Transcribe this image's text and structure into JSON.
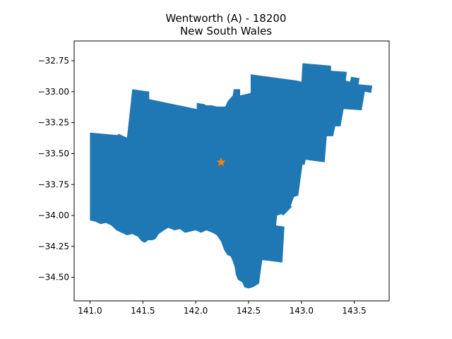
{
  "title_line1": "Wentworth (A) - 18200",
  "title_line2": "New South Wales",
  "colors": {
    "region": "#1f77b4",
    "marker": "#ff7f0e",
    "axes": "#000000"
  },
  "chart_data": {
    "type": "map",
    "xlim": [
      140.85,
      143.83
    ],
    "ylim": [
      -34.69,
      -32.59
    ],
    "x_ticks": [
      141.0,
      141.5,
      142.0,
      142.5,
      143.0,
      143.5
    ],
    "x_tick_labels": [
      "141.0",
      "141.5",
      "142.0",
      "142.5",
      "143.0",
      "143.5"
    ],
    "y_ticks": [
      -32.75,
      -33.0,
      -33.25,
      -33.5,
      -33.75,
      -34.0,
      -34.25,
      -34.5
    ],
    "y_tick_labels": [
      "−32.75",
      "−33.00",
      "−33.25",
      "−33.50",
      "−33.75",
      "−34.00",
      "−34.25",
      "−34.50"
    ],
    "region": {
      "name": "Wentworth (A) - 18200",
      "outline_lonlat": [
        [
          141.0,
          -33.33
        ],
        [
          141.26,
          -33.35
        ],
        [
          141.27,
          -33.34
        ],
        [
          141.32,
          -33.36
        ],
        [
          141.35,
          -33.37
        ],
        [
          141.4,
          -32.98
        ],
        [
          141.56,
          -33.0
        ],
        [
          141.56,
          -33.06
        ],
        [
          142.01,
          -33.14
        ],
        [
          142.01,
          -33.09
        ],
        [
          142.08,
          -33.1
        ],
        [
          142.1,
          -33.11
        ],
        [
          142.15,
          -33.11
        ],
        [
          142.2,
          -33.12
        ],
        [
          142.28,
          -33.12
        ],
        [
          142.3,
          -33.08
        ],
        [
          142.35,
          -33.03
        ],
        [
          142.36,
          -32.98
        ],
        [
          142.42,
          -32.98
        ],
        [
          142.42,
          -33.03
        ],
        [
          142.52,
          -33.01
        ],
        [
          142.52,
          -32.86
        ],
        [
          142.96,
          -32.91
        ],
        [
          143.0,
          -32.92
        ],
        [
          143.01,
          -32.77
        ],
        [
          143.28,
          -32.79
        ],
        [
          143.28,
          -32.83
        ],
        [
          143.43,
          -32.84
        ],
        [
          143.42,
          -32.91
        ],
        [
          143.46,
          -32.92
        ],
        [
          143.47,
          -32.88
        ],
        [
          143.55,
          -32.89
        ],
        [
          143.54,
          -32.94
        ],
        [
          143.67,
          -32.95
        ],
        [
          143.66,
          -33.01
        ],
        [
          143.6,
          -33.0
        ],
        [
          143.57,
          -33.15
        ],
        [
          143.4,
          -33.14
        ],
        [
          143.37,
          -33.28
        ],
        [
          143.32,
          -33.28
        ],
        [
          143.3,
          -33.36
        ],
        [
          143.24,
          -33.36
        ],
        [
          143.22,
          -33.57
        ],
        [
          143.04,
          -33.55
        ],
        [
          143.03,
          -33.59
        ],
        [
          143.01,
          -33.59
        ],
        [
          142.97,
          -33.84
        ],
        [
          142.93,
          -33.85
        ],
        [
          142.9,
          -33.92
        ],
        [
          142.91,
          -33.93
        ],
        [
          142.83,
          -34.0
        ],
        [
          142.81,
          -33.99
        ],
        [
          142.77,
          -34.0
        ],
        [
          142.76,
          -34.08
        ],
        [
          142.84,
          -34.09
        ],
        [
          142.82,
          -34.38
        ],
        [
          142.63,
          -34.36
        ],
        [
          142.61,
          -34.48
        ],
        [
          142.6,
          -34.55
        ],
        [
          142.54,
          -34.58
        ],
        [
          142.5,
          -34.59
        ],
        [
          142.46,
          -34.58
        ],
        [
          142.44,
          -34.54
        ],
        [
          142.4,
          -34.52
        ],
        [
          142.38,
          -34.48
        ],
        [
          142.37,
          -34.42
        ],
        [
          142.35,
          -34.37
        ],
        [
          142.33,
          -34.33
        ],
        [
          142.3,
          -34.32
        ],
        [
          142.27,
          -34.28
        ],
        [
          142.24,
          -34.21
        ],
        [
          142.2,
          -34.16
        ],
        [
          142.16,
          -34.14
        ],
        [
          142.1,
          -34.12
        ],
        [
          142.05,
          -34.14
        ],
        [
          142.0,
          -34.12
        ],
        [
          141.95,
          -34.13
        ],
        [
          141.9,
          -34.14
        ],
        [
          141.85,
          -34.11
        ],
        [
          141.8,
          -34.12
        ],
        [
          141.74,
          -34.1
        ],
        [
          141.7,
          -34.12
        ],
        [
          141.65,
          -34.15
        ],
        [
          141.62,
          -34.19
        ],
        [
          141.59,
          -34.2
        ],
        [
          141.55,
          -34.2
        ],
        [
          141.52,
          -34.22
        ],
        [
          141.49,
          -34.21
        ],
        [
          141.45,
          -34.17
        ],
        [
          141.4,
          -34.15
        ],
        [
          141.35,
          -34.16
        ],
        [
          141.3,
          -34.14
        ],
        [
          141.25,
          -34.12
        ],
        [
          141.2,
          -34.08
        ],
        [
          141.15,
          -34.06
        ],
        [
          141.1,
          -34.07
        ],
        [
          141.05,
          -34.05
        ],
        [
          141.0,
          -34.04
        ]
      ]
    },
    "marker": {
      "symbol": "star",
      "lon": 142.24,
      "lat": -33.57
    }
  }
}
